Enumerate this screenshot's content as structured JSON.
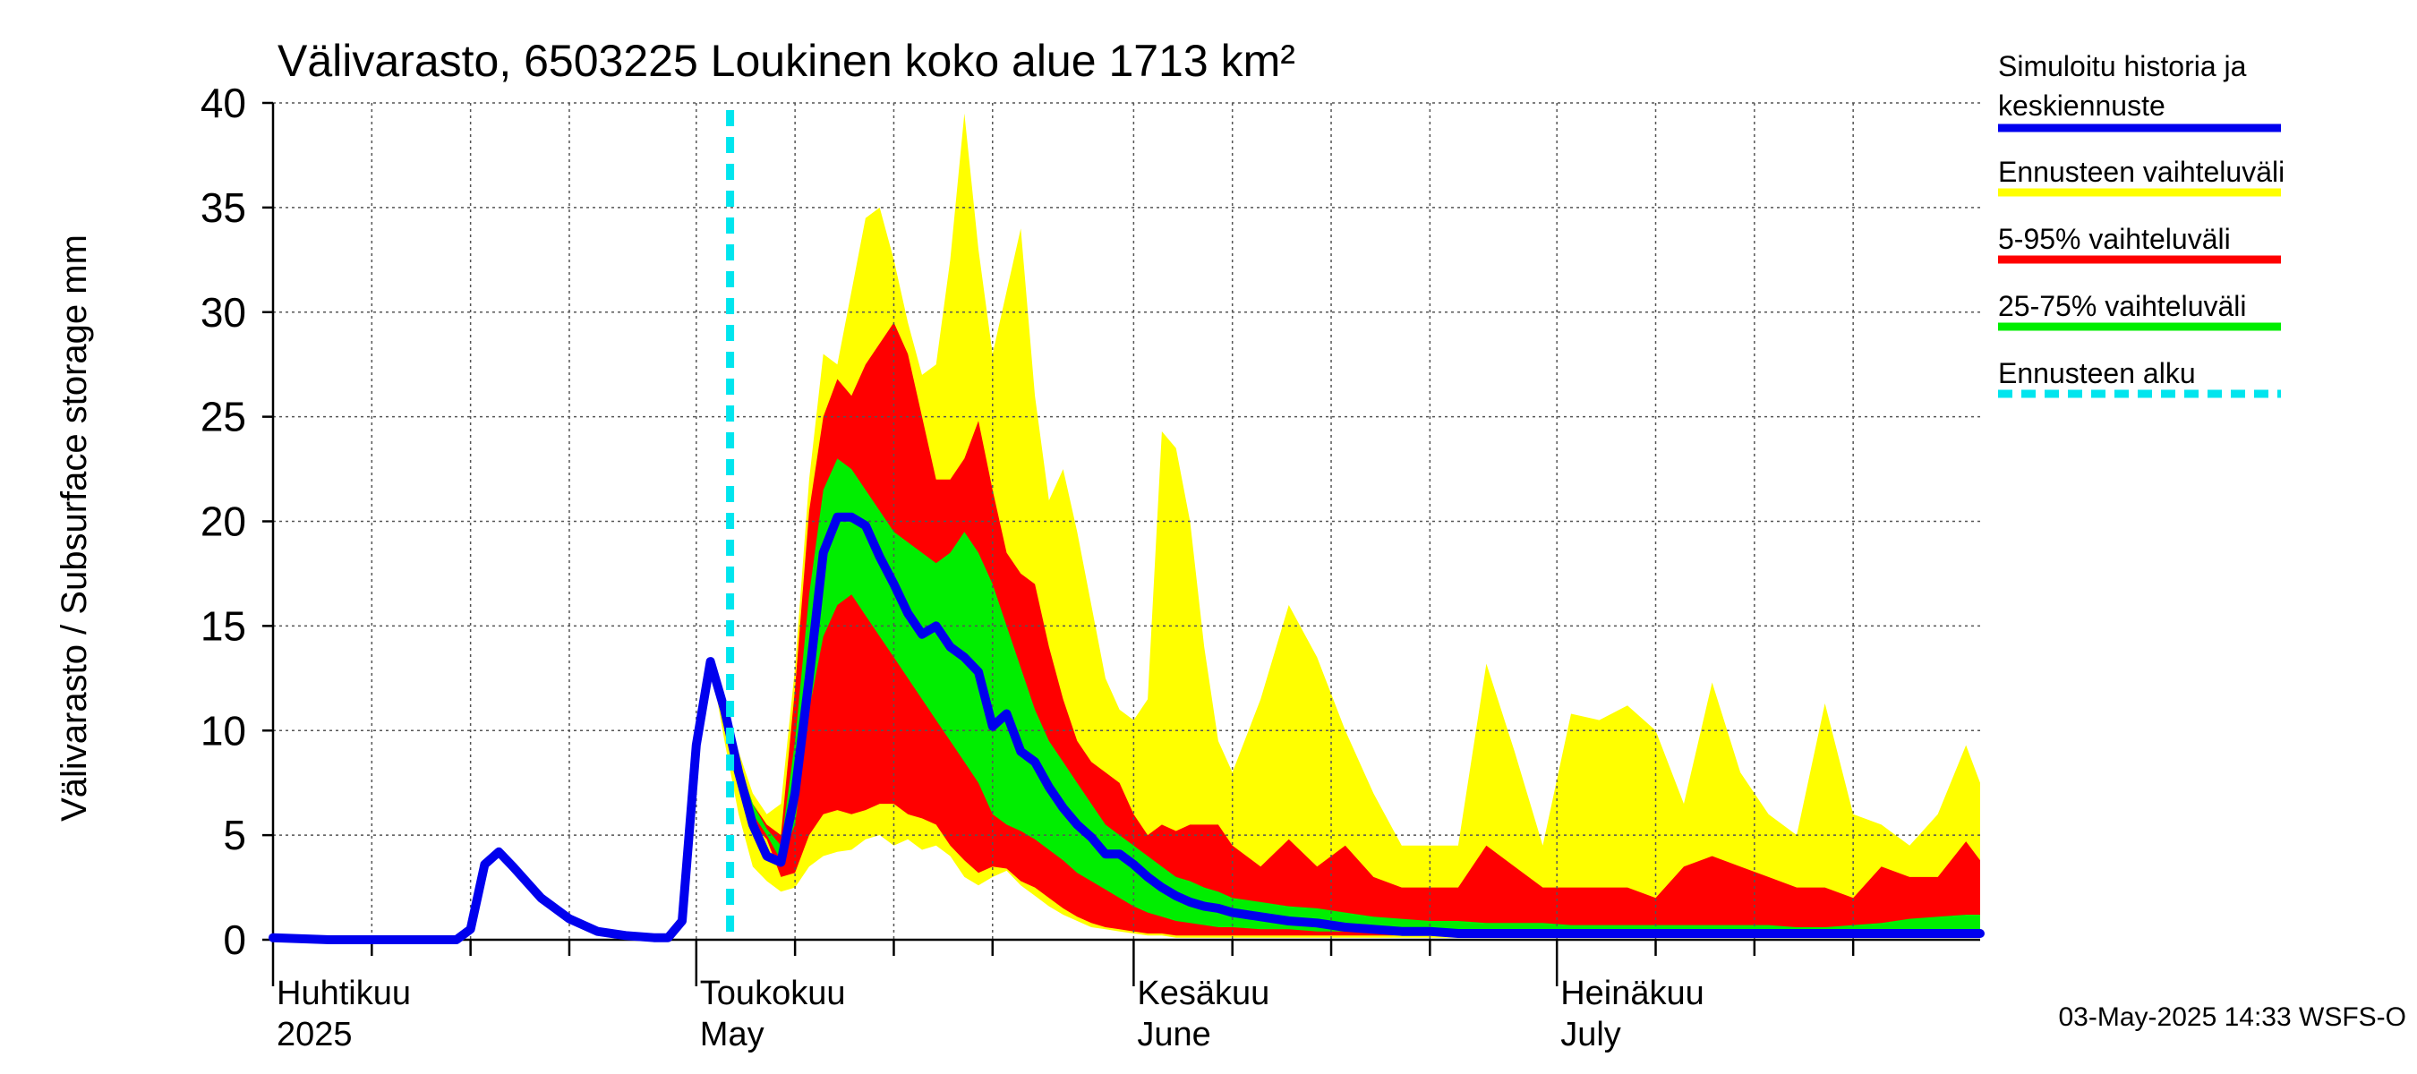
{
  "chart_data": {
    "type": "area",
    "title": "Välivarasto, 6503225 Loukinen koko alue 1713 km²",
    "ylabel": "Välivarasto / Subsurface storage  mm",
    "ylim": [
      0,
      40
    ],
    "yticks": [
      0,
      5,
      10,
      15,
      20,
      25,
      30,
      35,
      40
    ],
    "x_start": "2025-04-01",
    "x_end": "2025-07-31",
    "grid": true,
    "forecast_start": "2025-05-02",
    "month_labels": [
      {
        "date": "2025-04-01",
        "fi": "Huhtikuu",
        "en": "2025"
      },
      {
        "date": "2025-05-01",
        "fi": "Toukokuu",
        "en": "May"
      },
      {
        "date": "2025-06-01",
        "fi": "Kesäkuu",
        "en": "June"
      },
      {
        "date": "2025-07-01",
        "fi": "Heinäkuu",
        "en": "July"
      }
    ],
    "legend_position": "right",
    "legend": [
      {
        "label": "Simuloitu historia ja keskiennuste",
        "lines": [
          "Simuloitu historia ja",
          "keskiennuste"
        ],
        "color": "#0000ee",
        "style": "solid"
      },
      {
        "label": "Ennusteen vaihteluväli",
        "lines": [
          "Ennusteen vaihteluväli"
        ],
        "color": "#ffff00",
        "style": "solid"
      },
      {
        "label": "5-95% vaihteluväli",
        "lines": [
          "5-95% vaihteluväli"
        ],
        "color": "#ff0000",
        "style": "solid"
      },
      {
        "label": "25-75% vaihteluväli",
        "lines": [
          "25-75% vaihteluväli"
        ],
        "color": "#00ee00",
        "style": "solid"
      },
      {
        "label": "Ennusteen alku",
        "lines": [
          "Ennusteen alku"
        ],
        "color": "#00e5ee",
        "style": "dashed"
      }
    ],
    "footer": "03-May-2025 14:33 WSFS-O",
    "history": {
      "dates": [
        "2025-04-01",
        "2025-04-05",
        "2025-04-10",
        "2025-04-14",
        "2025-04-15",
        "2025-04-16",
        "2025-04-17",
        "2025-04-18",
        "2025-04-20",
        "2025-04-22",
        "2025-04-24",
        "2025-04-26",
        "2025-04-28",
        "2025-04-29",
        "2025-04-30",
        "2025-05-01",
        "2025-05-02"
      ],
      "values": [
        0.1,
        0.0,
        0.0,
        0.0,
        0.5,
        3.6,
        4.2,
        3.5,
        2.0,
        1.0,
        0.4,
        0.2,
        0.1,
        0.1,
        0.9,
        9.3,
        13.3
      ]
    },
    "forecast": {
      "dates": [
        "2025-05-02",
        "2025-05-03",
        "2025-05-04",
        "2025-05-05",
        "2025-05-06",
        "2025-05-07",
        "2025-05-08",
        "2025-05-09",
        "2025-05-10",
        "2025-05-11",
        "2025-05-12",
        "2025-05-13",
        "2025-05-14",
        "2025-05-15",
        "2025-05-16",
        "2025-05-17",
        "2025-05-18",
        "2025-05-19",
        "2025-05-20",
        "2025-05-21",
        "2025-05-22",
        "2025-05-23",
        "2025-05-24",
        "2025-05-25",
        "2025-05-26",
        "2025-05-27",
        "2025-05-28",
        "2025-05-29",
        "2025-05-30",
        "2025-05-31",
        "2025-06-01",
        "2025-06-02",
        "2025-06-03",
        "2025-06-04",
        "2025-06-05",
        "2025-06-06",
        "2025-06-07",
        "2025-06-08",
        "2025-06-10",
        "2025-06-12",
        "2025-06-14",
        "2025-06-16",
        "2025-06-18",
        "2025-06-20",
        "2025-06-22",
        "2025-06-24",
        "2025-06-26",
        "2025-06-28",
        "2025-06-30",
        "2025-07-02",
        "2025-07-04",
        "2025-07-06",
        "2025-07-08",
        "2025-07-10",
        "2025-07-12",
        "2025-07-14",
        "2025-07-16",
        "2025-07-18",
        "2025-07-20",
        "2025-07-22",
        "2025-07-24",
        "2025-07-26",
        "2025-07-28",
        "2025-07-30",
        "2025-07-31"
      ],
      "median": [
        13.3,
        11.0,
        8.0,
        5.5,
        4.0,
        3.7,
        7.0,
        12.5,
        18.5,
        20.2,
        20.2,
        19.8,
        18.3,
        17.0,
        15.6,
        14.6,
        15.0,
        14.0,
        13.5,
        12.8,
        10.2,
        10.8,
        9.0,
        8.5,
        7.3,
        6.3,
        5.5,
        4.9,
        4.1,
        4.1,
        3.6,
        3.0,
        2.5,
        2.1,
        1.8,
        1.6,
        1.5,
        1.3,
        1.1,
        0.9,
        0.8,
        0.6,
        0.5,
        0.4,
        0.4,
        0.3,
        0.3,
        0.3,
        0.3,
        0.3,
        0.3,
        0.3,
        0.3,
        0.3,
        0.3,
        0.3,
        0.3,
        0.3,
        0.3,
        0.3,
        0.3,
        0.3,
        0.3,
        0.3,
        0.3
      ],
      "min": [
        13.3,
        9.5,
        6.0,
        3.5,
        2.8,
        2.3,
        2.5,
        3.5,
        4.0,
        4.2,
        4.3,
        4.8,
        5.0,
        4.5,
        4.8,
        4.3,
        4.5,
        4.0,
        3.0,
        2.6,
        3.0,
        3.3,
        2.6,
        2.1,
        1.6,
        1.2,
        0.9,
        0.6,
        0.5,
        0.4,
        0.3,
        0.2,
        0.2,
        0.1,
        0.1,
        0.1,
        0.1,
        0.1,
        0.1,
        0.1,
        0.1,
        0.1,
        0.1,
        0.1,
        0.1,
        0.1,
        0.1,
        0.1,
        0.1,
        0.1,
        0.1,
        0.1,
        0.1,
        0.1,
        0.1,
        0.1,
        0.1,
        0.1,
        0.1,
        0.1,
        0.1,
        0.1,
        0.1,
        0.1,
        0.1
      ],
      "max": [
        13.3,
        11.5,
        9.0,
        7.0,
        6.0,
        6.5,
        13.0,
        22.0,
        28.0,
        27.5,
        31.0,
        34.5,
        35.0,
        32.5,
        29.5,
        27.0,
        27.5,
        32.5,
        39.5,
        33.0,
        28.0,
        31.0,
        34.0,
        26.0,
        21.0,
        22.5,
        19.5,
        16.0,
        12.5,
        11.0,
        10.5,
        11.5,
        24.3,
        23.5,
        20.0,
        14.0,
        9.5,
        8.0,
        11.5,
        16.0,
        13.5,
        10.0,
        7.0,
        4.5,
        4.5,
        4.5,
        13.2,
        9.0,
        4.5,
        10.8,
        10.5,
        11.2,
        10.0,
        6.5,
        12.3,
        8.0,
        6.0,
        5.0,
        11.3,
        6.0,
        5.5,
        4.5,
        6.0,
        9.3,
        7.5
      ],
      "p5": [
        13.3,
        10.8,
        8.0,
        5.5,
        4.8,
        3.0,
        3.2,
        5.0,
        6.0,
        6.2,
        6.0,
        6.2,
        6.5,
        6.5,
        6.0,
        5.8,
        5.5,
        4.5,
        3.8,
        3.2,
        3.5,
        3.4,
        2.8,
        2.5,
        2.0,
        1.5,
        1.1,
        0.8,
        0.6,
        0.5,
        0.4,
        0.3,
        0.3,
        0.2,
        0.2,
        0.2,
        0.2,
        0.2,
        0.2,
        0.2,
        0.2,
        0.2,
        0.2,
        0.2,
        0.2,
        0.2,
        0.2,
        0.2,
        0.2,
        0.2,
        0.2,
        0.2,
        0.2,
        0.2,
        0.2,
        0.2,
        0.2,
        0.2,
        0.2,
        0.2,
        0.2,
        0.2,
        0.2,
        0.2,
        0.2
      ],
      "p95": [
        13.3,
        11.2,
        8.5,
        6.5,
        5.5,
        5.0,
        12.0,
        20.5,
        25.0,
        26.8,
        26.0,
        27.5,
        28.5,
        29.5,
        28.0,
        25.0,
        22.0,
        22.0,
        23.0,
        24.8,
        21.5,
        18.5,
        17.5,
        17.0,
        14.0,
        11.5,
        9.5,
        8.5,
        8.0,
        7.5,
        6.0,
        5.0,
        5.5,
        5.2,
        5.5,
        5.5,
        5.5,
        4.5,
        3.5,
        4.8,
        3.5,
        4.5,
        3.0,
        2.5,
        2.5,
        2.5,
        4.5,
        3.5,
        2.5,
        2.5,
        2.5,
        2.5,
        2.0,
        3.5,
        4.0,
        3.5,
        3.0,
        2.5,
        2.5,
        2.0,
        3.5,
        3.0,
        3.0,
        4.7,
        3.8
      ],
      "p25": [
        13.3,
        11.0,
        8.3,
        6.0,
        5.0,
        3.8,
        5.5,
        11.0,
        14.5,
        16.0,
        16.5,
        15.5,
        14.5,
        13.5,
        12.5,
        11.5,
        10.5,
        9.5,
        8.5,
        7.5,
        6.0,
        5.5,
        5.2,
        4.8,
        4.3,
        3.8,
        3.2,
        2.8,
        2.4,
        2.0,
        1.6,
        1.3,
        1.1,
        0.9,
        0.8,
        0.7,
        0.6,
        0.6,
        0.5,
        0.5,
        0.4,
        0.4,
        0.4,
        0.4,
        0.4,
        0.4,
        0.4,
        0.4,
        0.3,
        0.3,
        0.3,
        0.3,
        0.3,
        0.3,
        0.3,
        0.3,
        0.3,
        0.3,
        0.3,
        0.3,
        0.3,
        0.3,
        0.3,
        0.3,
        0.3
      ],
      "p75": [
        13.3,
        11.2,
        8.5,
        6.5,
        5.3,
        4.5,
        9.5,
        16.5,
        21.5,
        23.0,
        22.5,
        21.5,
        20.5,
        19.5,
        19.0,
        18.5,
        18.0,
        18.5,
        19.5,
        18.5,
        17.0,
        15.0,
        13.0,
        11.0,
        9.5,
        8.5,
        7.5,
        6.5,
        5.5,
        5.0,
        4.5,
        4.0,
        3.5,
        3.0,
        2.8,
        2.5,
        2.3,
        2.0,
        1.8,
        1.6,
        1.5,
        1.3,
        1.1,
        1.0,
        0.9,
        0.9,
        0.8,
        0.8,
        0.8,
        0.7,
        0.7,
        0.7,
        0.7,
        0.7,
        0.7,
        0.7,
        0.7,
        0.6,
        0.6,
        0.7,
        0.8,
        1.0,
        1.1,
        1.2,
        1.2
      ]
    }
  }
}
